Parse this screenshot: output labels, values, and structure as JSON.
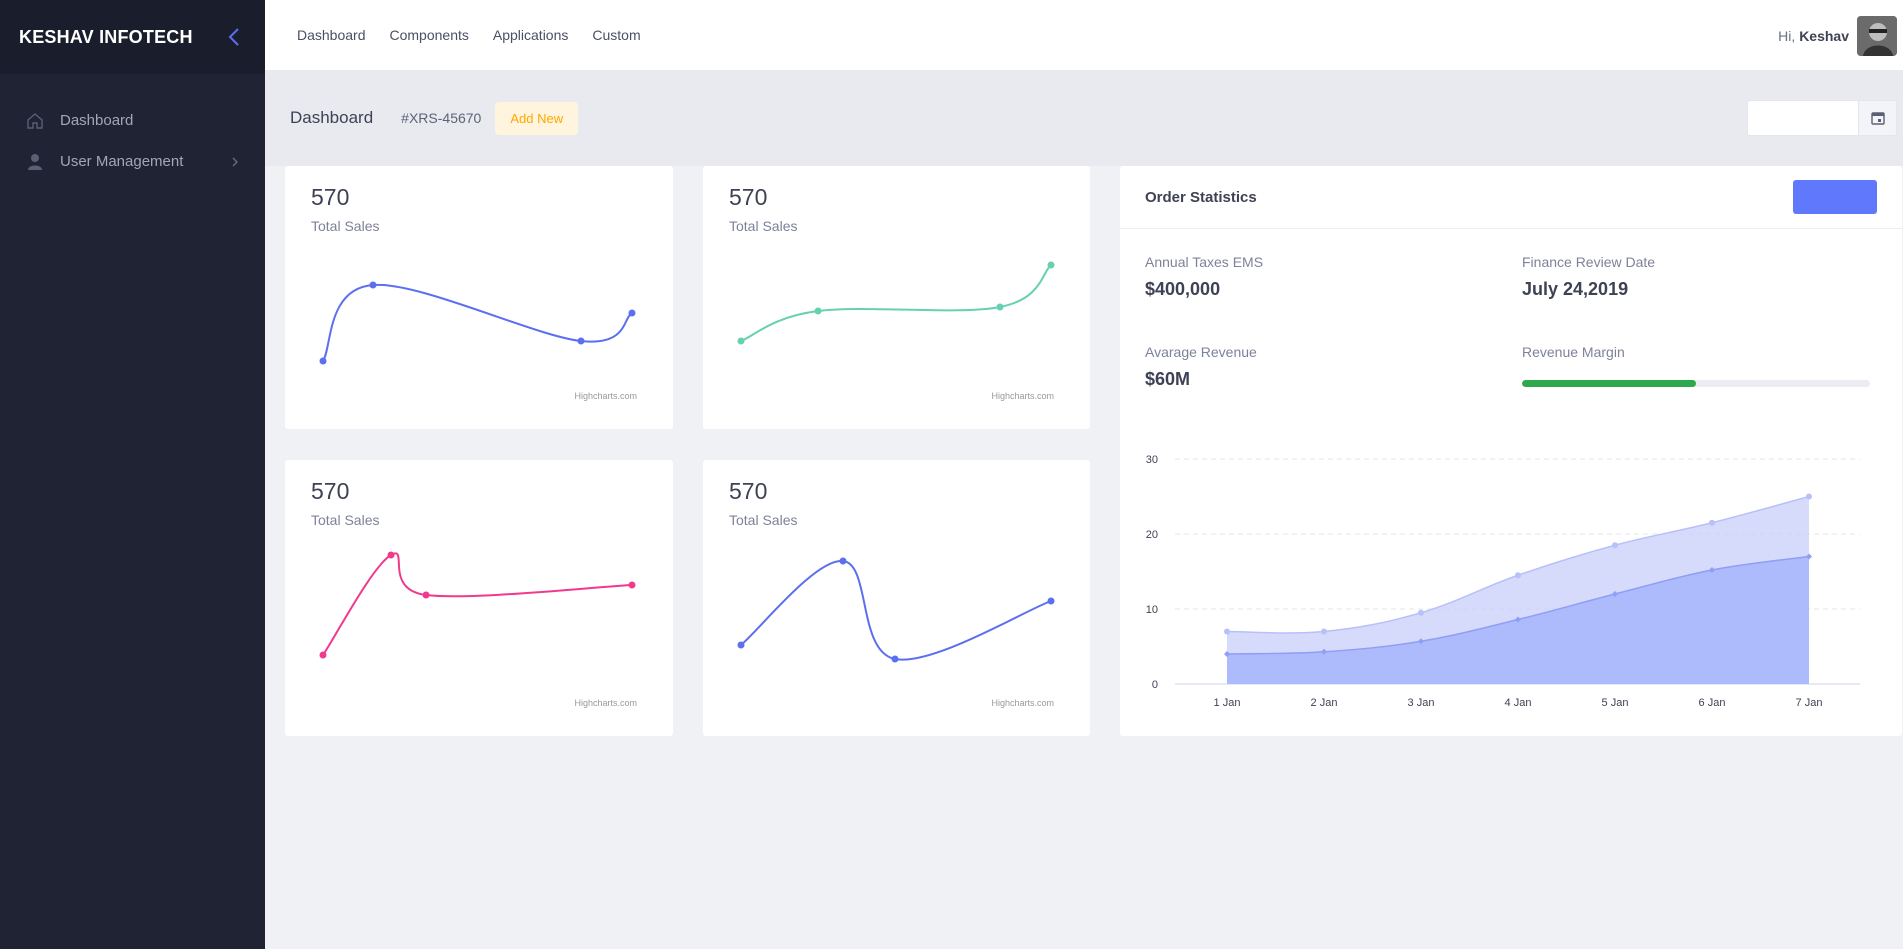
{
  "sidebar": {
    "brand": "KESHAV INFOTECH",
    "items": [
      {
        "label": "Dashboard",
        "icon": "home-icon"
      },
      {
        "label": "User Management",
        "icon": "user-icon"
      }
    ]
  },
  "header": {
    "nav": [
      "Dashboard",
      "Components",
      "Applications",
      "Custom"
    ],
    "greeting": "Hi,",
    "user_name": "Keshav"
  },
  "subheader": {
    "title": "Dashboard",
    "code": "#XRS-45670",
    "add_new": "Add New",
    "date_value": ""
  },
  "stat_cards": [
    {
      "value": "570",
      "label": "Total Sales",
      "credit": "Highcharts.com",
      "color": "#5b6ff0"
    },
    {
      "value": "570",
      "label": "Total Sales",
      "credit": "Highcharts.com",
      "color": "#66d1b0"
    },
    {
      "value": "570",
      "label": "Total Sales",
      "credit": "Highcharts.com",
      "color": "#f03a8d"
    },
    {
      "value": "570",
      "label": "Total Sales",
      "credit": "Highcharts.com",
      "color": "#5b6ff0"
    }
  ],
  "order_statistics": {
    "title": "Order Statistics",
    "button_label": "",
    "metrics": [
      {
        "label": "Annual Taxes EMS",
        "value": "$400,000"
      },
      {
        "label": "Finance Review Date",
        "value": "July 24,2019"
      },
      {
        "label": "Avarage Revenue",
        "value": "$60M"
      },
      {
        "label": "Revenue Margin",
        "value": ""
      }
    ],
    "revenue_margin_fraction": 0.5
  },
  "chart_data": [
    {
      "type": "line",
      "title": "",
      "x": [
        0,
        1,
        2,
        3
      ],
      "values": [
        10,
        48,
        20,
        34
      ],
      "color": "#5b6ff0"
    },
    {
      "type": "line",
      "title": "",
      "x": [
        0,
        1,
        2,
        3
      ],
      "values": [
        20,
        35,
        37,
        58
      ],
      "color": "#66d1b0"
    },
    {
      "type": "line",
      "title": "",
      "x": [
        0,
        1,
        2,
        3
      ],
      "values": [
        10,
        60,
        40,
        45
      ],
      "color": "#f03a8d"
    },
    {
      "type": "line",
      "title": "",
      "x": [
        0,
        1,
        2,
        3
      ],
      "values": [
        15,
        57,
        8,
        37
      ],
      "color": "#5b6ff0"
    },
    {
      "type": "area",
      "title": "",
      "categories": [
        "1 Jan",
        "2 Jan",
        "3 Jan",
        "4 Jan",
        "5 Jan",
        "6 Jan",
        "7 Jan"
      ],
      "yticks": [
        0,
        10,
        20,
        30
      ],
      "ylim": [
        0,
        30
      ],
      "grid": true,
      "legend": "none",
      "series": [
        {
          "values": [
            7,
            7,
            9.5,
            14.5,
            18.5,
            21.5,
            25
          ],
          "color": "#c9cffa"
        },
        {
          "values": [
            4,
            4.3,
            5.7,
            8.6,
            12,
            15.2,
            17
          ],
          "color": "#a9b6fb"
        }
      ]
    }
  ]
}
